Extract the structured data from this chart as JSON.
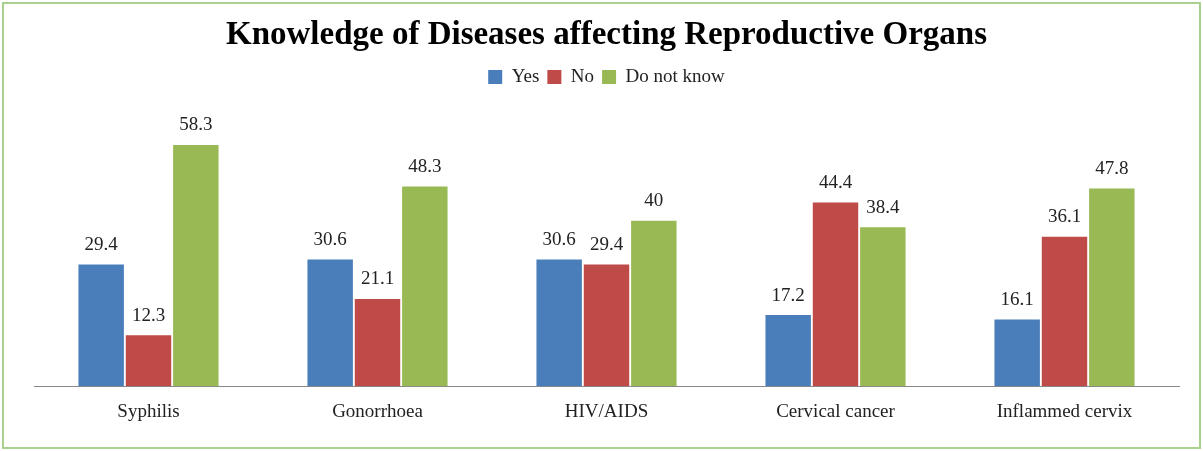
{
  "chart_data": {
    "type": "bar",
    "title": "Knowledge of Diseases affecting Reproductive Organs",
    "categories": [
      "Syphilis",
      "Gonorrhoea",
      "HIV/AIDS",
      "Cervical cancer",
      "Inflammed cervix"
    ],
    "series": [
      {
        "name": "Yes",
        "color": "#4a7ebb",
        "values": [
          29.4,
          30.6,
          30.6,
          17.2,
          16.1
        ]
      },
      {
        "name": "No",
        "color": "#be4b48",
        "values": [
          12.3,
          21.1,
          29.4,
          44.4,
          36.1
        ]
      },
      {
        "name": "Do not know",
        "color": "#98b954",
        "values": [
          58.3,
          48.3,
          40,
          38.4,
          47.8
        ]
      }
    ],
    "data_labels": true,
    "legend": "top",
    "grid": false
  }
}
